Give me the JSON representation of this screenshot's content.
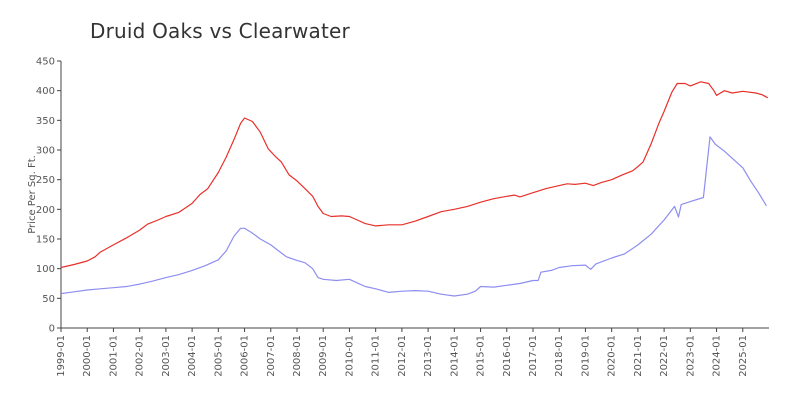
{
  "chart_data": {
    "type": "line",
    "title": "Druid Oaks vs Clearwater",
    "xlabel": "",
    "ylabel": "Price Per Sq. Ft.",
    "ylim": [
      0,
      450
    ],
    "xlim": [
      1999.0,
      2026.0
    ],
    "yticks": [
      0,
      50,
      100,
      150,
      200,
      250,
      300,
      350,
      400,
      450
    ],
    "xticks": [
      "1999-01",
      "2000-01",
      "2001-01",
      "2002-01",
      "2003-01",
      "2004-01",
      "2005-01",
      "2006-01",
      "2007-01",
      "2008-01",
      "2009-01",
      "2010-01",
      "2011-01",
      "2012-01",
      "2013-01",
      "2014-01",
      "2015-01",
      "2016-01",
      "2017-01",
      "2018-01",
      "2019-01",
      "2020-01",
      "2021-01",
      "2022-01",
      "2023-01",
      "2024-01",
      "2025-01"
    ],
    "grid": false,
    "series": [
      {
        "name": "Druid Oaks",
        "color": "#e8302a",
        "points": [
          [
            1999.0,
            102
          ],
          [
            1999.5,
            107
          ],
          [
            2000.0,
            113
          ],
          [
            2000.3,
            120
          ],
          [
            2000.5,
            128
          ],
          [
            2001.0,
            140
          ],
          [
            2001.5,
            152
          ],
          [
            2002.0,
            165
          ],
          [
            2002.3,
            175
          ],
          [
            2002.7,
            182
          ],
          [
            2003.0,
            188
          ],
          [
            2003.5,
            195
          ],
          [
            2004.0,
            210
          ],
          [
            2004.3,
            225
          ],
          [
            2004.6,
            235
          ],
          [
            2005.0,
            262
          ],
          [
            2005.3,
            288
          ],
          [
            2005.6,
            318
          ],
          [
            2005.85,
            345
          ],
          [
            2006.0,
            354
          ],
          [
            2006.3,
            348
          ],
          [
            2006.6,
            330
          ],
          [
            2006.9,
            302
          ],
          [
            2007.2,
            288
          ],
          [
            2007.4,
            280
          ],
          [
            2007.7,
            258
          ],
          [
            2008.0,
            248
          ],
          [
            2008.3,
            235
          ],
          [
            2008.6,
            222
          ],
          [
            2008.8,
            205
          ],
          [
            2009.0,
            193
          ],
          [
            2009.3,
            188
          ],
          [
            2009.7,
            189
          ],
          [
            2010.0,
            188
          ],
          [
            2010.3,
            182
          ],
          [
            2010.6,
            176
          ],
          [
            2011.0,
            172
          ],
          [
            2011.5,
            174
          ],
          [
            2012.0,
            174
          ],
          [
            2012.5,
            180
          ],
          [
            2013.0,
            188
          ],
          [
            2013.5,
            196
          ],
          [
            2014.0,
            200
          ],
          [
            2014.5,
            205
          ],
          [
            2015.0,
            212
          ],
          [
            2015.5,
            218
          ],
          [
            2016.0,
            222
          ],
          [
            2016.3,
            224
          ],
          [
            2016.5,
            221
          ],
          [
            2017.0,
            228
          ],
          [
            2017.5,
            235
          ],
          [
            2018.0,
            240
          ],
          [
            2018.3,
            243
          ],
          [
            2018.6,
            242
          ],
          [
            2019.0,
            244
          ],
          [
            2019.3,
            240
          ],
          [
            2019.6,
            245
          ],
          [
            2020.0,
            250
          ],
          [
            2020.4,
            258
          ],
          [
            2020.8,
            265
          ],
          [
            2021.0,
            272
          ],
          [
            2021.2,
            280
          ],
          [
            2021.5,
            310
          ],
          [
            2021.8,
            345
          ],
          [
            2022.0,
            365
          ],
          [
            2022.3,
            398
          ],
          [
            2022.5,
            412
          ],
          [
            2022.8,
            412
          ],
          [
            2023.0,
            408
          ],
          [
            2023.4,
            415
          ],
          [
            2023.7,
            412
          ],
          [
            2023.9,
            400
          ],
          [
            2024.0,
            392
          ],
          [
            2024.3,
            400
          ],
          [
            2024.6,
            396
          ],
          [
            2025.0,
            399
          ],
          [
            2025.5,
            396
          ],
          [
            2025.75,
            393
          ],
          [
            2025.95,
            388
          ]
        ]
      },
      {
        "name": "Clearwater",
        "color": "#8e8ef0",
        "points": [
          [
            1999.0,
            58
          ],
          [
            1999.5,
            61
          ],
          [
            2000.0,
            64
          ],
          [
            2000.5,
            66
          ],
          [
            2001.0,
            68
          ],
          [
            2001.5,
            70
          ],
          [
            2002.0,
            74
          ],
          [
            2002.5,
            79
          ],
          [
            2003.0,
            85
          ],
          [
            2003.5,
            90
          ],
          [
            2004.0,
            97
          ],
          [
            2004.5,
            105
          ],
          [
            2005.0,
            115
          ],
          [
            2005.3,
            130
          ],
          [
            2005.6,
            155
          ],
          [
            2005.85,
            168
          ],
          [
            2006.0,
            168
          ],
          [
            2006.3,
            160
          ],
          [
            2006.6,
            150
          ],
          [
            2007.0,
            140
          ],
          [
            2007.3,
            130
          ],
          [
            2007.6,
            120
          ],
          [
            2008.0,
            114
          ],
          [
            2008.3,
            110
          ],
          [
            2008.6,
            100
          ],
          [
            2008.8,
            85
          ],
          [
            2009.0,
            82
          ],
          [
            2009.5,
            80
          ],
          [
            2010.0,
            82
          ],
          [
            2010.3,
            76
          ],
          [
            2010.6,
            70
          ],
          [
            2011.0,
            66
          ],
          [
            2011.5,
            60
          ],
          [
            2012.0,
            62
          ],
          [
            2012.5,
            63
          ],
          [
            2013.0,
            62
          ],
          [
            2013.5,
            57
          ],
          [
            2014.0,
            54
          ],
          [
            2014.5,
            57
          ],
          [
            2014.8,
            62
          ],
          [
            2015.0,
            70
          ],
          [
            2015.5,
            69
          ],
          [
            2016.0,
            72
          ],
          [
            2016.5,
            75
          ],
          [
            2017.0,
            80
          ],
          [
            2017.2,
            80
          ],
          [
            2017.3,
            94
          ],
          [
            2017.7,
            97
          ],
          [
            2018.0,
            102
          ],
          [
            2018.5,
            105
          ],
          [
            2019.0,
            106
          ],
          [
            2019.2,
            99
          ],
          [
            2019.4,
            108
          ],
          [
            2020.0,
            118
          ],
          [
            2020.5,
            125
          ],
          [
            2021.0,
            140
          ],
          [
            2021.5,
            158
          ],
          [
            2022.0,
            182
          ],
          [
            2022.4,
            205
          ],
          [
            2022.55,
            187
          ],
          [
            2022.65,
            208
          ],
          [
            2023.0,
            213
          ],
          [
            2023.5,
            220
          ],
          [
            2023.75,
            322
          ],
          [
            2023.95,
            310
          ],
          [
            2024.3,
            298
          ],
          [
            2024.7,
            282
          ],
          [
            2025.0,
            270
          ],
          [
            2025.3,
            248
          ],
          [
            2025.6,
            228
          ],
          [
            2025.9,
            206
          ]
        ]
      }
    ]
  }
}
